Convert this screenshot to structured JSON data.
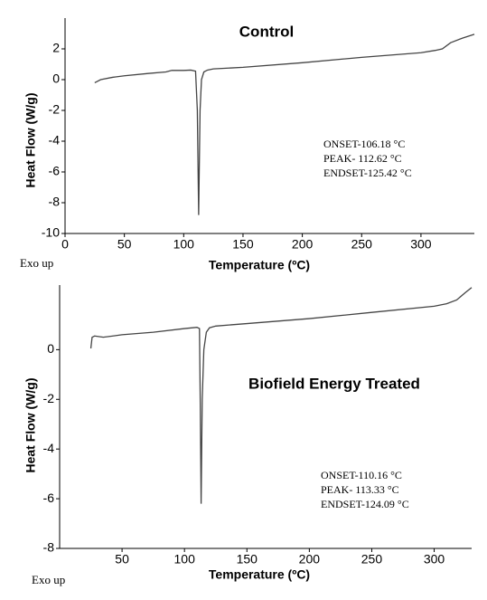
{
  "chart_data": [
    {
      "type": "line",
      "title": "Control",
      "x_label": "Temperature (ºC)",
      "y_label": "Heat Flow (W/g)",
      "x": [
        25,
        30,
        40,
        50,
        70,
        85,
        90,
        100,
        106,
        110,
        111.5,
        112.62,
        113.8,
        115,
        117,
        120,
        125,
        150,
        200,
        250,
        300,
        312,
        318,
        325,
        335,
        345
      ],
      "values": [
        -0.2,
        0.0,
        0.15,
        0.25,
        0.4,
        0.5,
        0.6,
        0.6,
        0.62,
        0.55,
        -2.0,
        -8.8,
        -2.0,
        0.0,
        0.5,
        0.62,
        0.7,
        0.8,
        1.1,
        1.45,
        1.75,
        1.9,
        2.0,
        2.4,
        2.7,
        2.95
      ],
      "color": "#444444",
      "xlim": [
        0,
        345
      ],
      "xticks": [
        0,
        50,
        100,
        150,
        200,
        250,
        300
      ],
      "ylim": [
        -10,
        4
      ],
      "yticks": [
        -10,
        -8,
        -6,
        -4,
        -2,
        0,
        2
      ],
      "annotations": [
        "ONSET-106.18 °C",
        "PEAK- 112.62 °C",
        "ENDSET-125.42 °C"
      ],
      "exo_label": "Exo up"
    },
    {
      "type": "line",
      "title": "Biofield Energy Treated",
      "x_label": "Temperature (ºC)",
      "y_label": "Heat Flow (W/g)",
      "x": [
        25,
        26,
        28,
        35,
        50,
        75,
        100,
        110,
        112,
        112.6,
        113.33,
        114.2,
        115.5,
        117.5,
        120,
        125,
        150,
        200,
        250,
        300,
        310,
        318,
        325,
        330
      ],
      "values": [
        0.05,
        0.5,
        0.55,
        0.5,
        0.6,
        0.7,
        0.85,
        0.9,
        0.85,
        -2.0,
        -6.2,
        -2.0,
        0.0,
        0.7,
        0.88,
        0.95,
        1.05,
        1.25,
        1.5,
        1.75,
        1.85,
        2.0,
        2.3,
        2.5
      ],
      "color": "#444444",
      "xlim": [
        0,
        330
      ],
      "xticks": [
        50,
        100,
        150,
        200,
        250,
        300
      ],
      "ylim": [
        -8,
        2.6
      ],
      "yticks": [
        -8,
        -6,
        -4,
        -2,
        0
      ],
      "annotations": [
        "ONSET-110.16 °C",
        "PEAK- 113.33 °C",
        "ENDSET-124.09 °C"
      ],
      "exo_label": "Exo up"
    }
  ]
}
